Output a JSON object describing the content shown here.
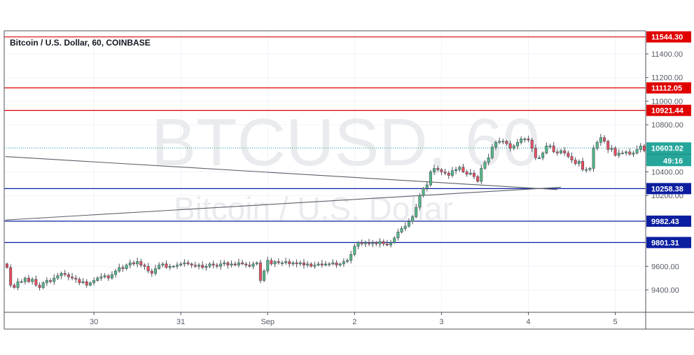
{
  "title": "Bitcoin / U.S. Dollar, 60, COINBASE",
  "chart_data": {
    "type": "candlestick",
    "symbol": "BTCUSD",
    "interval": "60",
    "watermark_main": "BTCUSD, 60",
    "watermark_sub": "Bitcoin / U.S. Dollar",
    "y_ticks": [
      11400.0,
      11200.0,
      11000.0,
      10800.0,
      10400.0,
      10200.0,
      9600.0,
      9400.0
    ],
    "x_ticks": [
      {
        "label": "30",
        "index": 24
      },
      {
        "label": "31",
        "index": 48
      },
      {
        "label": "Sep",
        "index": 72
      },
      {
        "label": "2",
        "index": 96
      },
      {
        "label": "3",
        "index": 120
      },
      {
        "label": "4",
        "index": 144
      },
      {
        "label": "5",
        "index": 168
      }
    ],
    "last_price": {
      "value": 10603.02,
      "color": "#26a69a"
    },
    "countdown": "49:16",
    "levels": [
      {
        "value": 11544.3,
        "color": "#e00000"
      },
      {
        "value": 11112.05,
        "color": "#e00000"
      },
      {
        "value": 10921.44,
        "color": "#e00000"
      },
      {
        "value": 10258.38,
        "color": "#0b1ea0"
      },
      {
        "value": 9982.43,
        "color": "#0b1ea0"
      },
      {
        "value": 9801.31,
        "color": "#0b1ea0"
      }
    ],
    "trendlines": [
      {
        "from": {
          "index": -0.5,
          "price": 10530
        },
        "to": {
          "index": 152,
          "price": 10250
        }
      },
      {
        "from": {
          "index": -0.5,
          "price": 9992
        },
        "to": {
          "index": 153,
          "price": 10270
        }
      }
    ],
    "colors": {
      "up": "#53b987",
      "down": "#eb4d5c",
      "wick": "#4a4e59"
    },
    "closes": [
      9590,
      9440,
      9420,
      9470,
      9470,
      9500,
      9470,
      9490,
      9440,
      9420,
      9460,
      9480,
      9470,
      9500,
      9520,
      9540,
      9530,
      9510,
      9500,
      9490,
      9460,
      9470,
      9440,
      9460,
      9480,
      9500,
      9510,
      9520,
      9500,
      9530,
      9560,
      9590,
      9580,
      9610,
      9630,
      9620,
      9640,
      9610,
      9600,
      9560,
      9540,
      9580,
      9610,
      9620,
      9590,
      9600,
      9600,
      9610,
      9620,
      9630,
      9620,
      9610,
      9600,
      9610,
      9590,
      9600,
      9620,
      9610,
      9600,
      9620,
      9630,
      9610,
      9620,
      9610,
      9630,
      9620,
      9610,
      9600,
      9620,
      9630,
      9480,
      9560,
      9650,
      9620,
      9640,
      9630,
      9630,
      9640,
      9620,
      9630,
      9620,
      9630,
      9610,
      9620,
      9600,
      9610,
      9620,
      9610,
      9620,
      9620,
      9630,
      9610,
      9620,
      9640,
      9650,
      9700,
      9770,
      9800,
      9790,
      9800,
      9790,
      9800,
      9790,
      9810,
      9790,
      9780,
      9800,
      9840,
      9890,
      9920,
      9940,
      9980,
      10020,
      10100,
      10200,
      10260,
      10290,
      10400,
      10430,
      10420,
      10400,
      10390,
      10370,
      10410,
      10420,
      10440,
      10400,
      10380,
      10390,
      10360,
      10320,
      10430,
      10480,
      10520,
      10610,
      10650,
      10660,
      10660,
      10640,
      10600,
      10620,
      10650,
      10680,
      10680,
      10670,
      10600,
      10520,
      10520,
      10560,
      10620,
      10620,
      10570,
      10560,
      10580,
      10560,
      10530,
      10500,
      10470,
      10490,
      10420,
      10420,
      10430,
      10600,
      10650,
      10690,
      10660,
      10590,
      10600,
      10540,
      10560,
      10560,
      10570,
      10550,
      10560,
      10590,
      10620,
      10580,
      10560,
      10590,
      10600,
      10603.02
    ]
  }
}
